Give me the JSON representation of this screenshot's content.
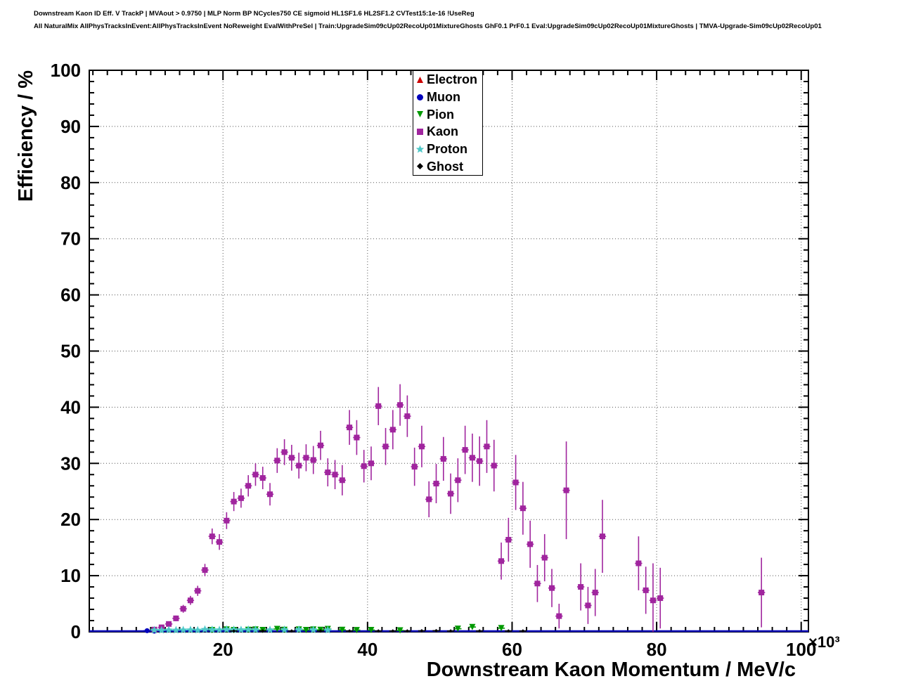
{
  "header": {
    "title_line1": "Downstream Kaon ID Eff. V TrackP | MVAout > 0.9750 | MLP Norm BP NCycles750 CE sigmoid HL1SF1.6 HL2SF1.2 CVTest15:1e-16 !UseReg",
    "title_line2": "All NaturalMix AllPhysTracksInEvent:AllPhysTracksInEvent NoReweight EvalWithPreSel | Train:UpgradeSim09cUp02RecoUp01MixtureGhosts GhF0.1 PrF0.1 Eval:UpgradeSim09cUp02RecoUp01MixtureGhosts | TMVA-Upgrade-Sim09cUp02RecoUp01",
    "x_power_label": "×10³"
  },
  "chart_data": {
    "type": "scatter",
    "title": "Downstream Kaon ID efficiency vs momentum",
    "xlabel": "Downstream Kaon Momentum / MeV/c",
    "ylabel": "Efficiency / %",
    "x_unit_multiplier": "×10³",
    "xlim": [
      1.5,
      101
    ],
    "ylim": [
      0,
      100
    ],
    "x_ticks": [
      20,
      40,
      60,
      80,
      100
    ],
    "y_ticks": [
      0,
      10,
      20,
      30,
      40,
      50,
      60,
      70,
      80,
      90,
      100
    ],
    "x_minor_step": 2,
    "y_minor_step": 2,
    "grid": "dotted",
    "legend_position": "top-center",
    "series": [
      {
        "name": "Electron",
        "marker": "triangle-up",
        "color": "#cc0000",
        "size": 9,
        "points": []
      },
      {
        "name": "Muon",
        "marker": "circle",
        "color": "#0000bb",
        "size": 7,
        "line_y": 0.12,
        "points": [
          [
            9.5,
            0.2,
            0.15
          ],
          [
            10.5,
            0.12,
            0.1
          ]
        ]
      },
      {
        "name": "Pion",
        "marker": "triangle-down",
        "color": "#009900",
        "size": 9,
        "points": [
          [
            18.5,
            0.3,
            0.1
          ],
          [
            20.5,
            0.4,
            0.1
          ],
          [
            21.5,
            0.3,
            0.1
          ],
          [
            23.5,
            0.35,
            0.1
          ],
          [
            24.5,
            0.4,
            0.1
          ],
          [
            25.5,
            0.32,
            0.1
          ],
          [
            27.5,
            0.5,
            0.12
          ],
          [
            28.5,
            0.35,
            0.1
          ],
          [
            30.5,
            0.4,
            0.1
          ],
          [
            31.5,
            0.32,
            0.1
          ],
          [
            32.5,
            0.4,
            0.12
          ],
          [
            33.5,
            0.35,
            0.1
          ],
          [
            34.5,
            0.5,
            0.12
          ],
          [
            36.5,
            0.35,
            0.1
          ],
          [
            38.5,
            0.3,
            0.1
          ],
          [
            40.5,
            0.32,
            0.1
          ],
          [
            44.5,
            0.25,
            0.1
          ],
          [
            52.5,
            0.55,
            0.2
          ],
          [
            54.5,
            0.85,
            0.3
          ],
          [
            58.5,
            0.65,
            0.3
          ]
        ]
      },
      {
        "name": "Kaon",
        "marker": "square",
        "color": "#a0259e",
        "size": 8,
        "points": [
          [
            10.5,
            0.4,
            0.3
          ],
          [
            11.5,
            0.8,
            0.35
          ],
          [
            12.5,
            1.4,
            0.4
          ],
          [
            13.5,
            2.4,
            0.5
          ],
          [
            14.5,
            4.1,
            0.7
          ],
          [
            15.5,
            5.6,
            0.8
          ],
          [
            16.5,
            7.3,
            0.9
          ],
          [
            17.5,
            11.0,
            1.1
          ],
          [
            18.5,
            17.0,
            1.4
          ],
          [
            19.5,
            16.0,
            1.4
          ],
          [
            20.5,
            19.8,
            1.5
          ],
          [
            21.5,
            23.2,
            1.7
          ],
          [
            22.5,
            23.8,
            1.7
          ],
          [
            23.5,
            26.0,
            1.9
          ],
          [
            24.5,
            28.0,
            2.0
          ],
          [
            25.5,
            27.4,
            2.0
          ],
          [
            26.5,
            24.5,
            2.0
          ],
          [
            27.5,
            30.5,
            2.2
          ],
          [
            28.5,
            32.0,
            2.3
          ],
          [
            29.5,
            31.0,
            2.3
          ],
          [
            30.5,
            29.6,
            2.3
          ],
          [
            31.5,
            31.0,
            2.4
          ],
          [
            32.5,
            30.6,
            2.5
          ],
          [
            33.5,
            33.2,
            2.6
          ],
          [
            34.5,
            28.4,
            2.5
          ],
          [
            35.5,
            28.0,
            2.6
          ],
          [
            36.5,
            27.0,
            2.7
          ],
          [
            37.5,
            36.4,
            3.1
          ],
          [
            38.5,
            34.6,
            3.1
          ],
          [
            39.5,
            29.5,
            2.9
          ],
          [
            40.5,
            30.0,
            3.0
          ],
          [
            41.5,
            40.2,
            3.4
          ],
          [
            42.5,
            33.0,
            3.3
          ],
          [
            43.5,
            36.0,
            3.5
          ],
          [
            44.5,
            40.4,
            3.7
          ],
          [
            45.5,
            38.4,
            3.7
          ],
          [
            46.5,
            29.4,
            3.4
          ],
          [
            47.5,
            33.0,
            3.7
          ],
          [
            48.5,
            23.6,
            3.2
          ],
          [
            49.5,
            26.4,
            3.5
          ],
          [
            50.5,
            30.8,
            3.9
          ],
          [
            51.5,
            24.6,
            3.6
          ],
          [
            52.5,
            27.0,
            3.9
          ],
          [
            53.5,
            32.4,
            4.3
          ],
          [
            54.5,
            31.0,
            4.3
          ],
          [
            55.5,
            30.4,
            4.4
          ],
          [
            56.5,
            33.0,
            4.7
          ],
          [
            57.5,
            29.6,
            4.6
          ],
          [
            58.5,
            12.6,
            3.3
          ],
          [
            59.5,
            16.4,
            3.9
          ],
          [
            60.5,
            26.6,
            4.9
          ],
          [
            61.5,
            22.0,
            4.7
          ],
          [
            62.5,
            15.6,
            4.2
          ],
          [
            63.5,
            8.6,
            3.3
          ],
          [
            64.5,
            13.2,
            4.2
          ],
          [
            65.5,
            7.8,
            3.4
          ],
          [
            66.5,
            2.8,
            2.2
          ],
          [
            67.5,
            25.2,
            8.7
          ],
          [
            69.5,
            8.0,
            4.2
          ],
          [
            70.5,
            4.7,
            3.3
          ],
          [
            71.5,
            7.0,
            4.2
          ],
          [
            72.5,
            17.0,
            6.5
          ],
          [
            77.5,
            12.2,
            4.8
          ],
          [
            78.5,
            7.4,
            4.2
          ],
          [
            79.5,
            5.6,
            6.6
          ],
          [
            80.5,
            6.0,
            5.4
          ],
          [
            94.5,
            7.0,
            6.2
          ]
        ]
      },
      {
        "name": "Proton",
        "marker": "star",
        "color": "#4dc8c8",
        "size": 11,
        "points": [
          [
            10.5,
            0.3,
            0.1
          ],
          [
            11.5,
            0.28,
            0.1
          ],
          [
            12.5,
            0.32,
            0.1
          ],
          [
            13.5,
            0.3,
            0.1
          ],
          [
            14.5,
            0.33,
            0.1
          ],
          [
            15.5,
            0.35,
            0.1
          ],
          [
            16.5,
            0.3,
            0.1
          ],
          [
            17.5,
            0.42,
            0.1
          ],
          [
            18.5,
            0.38,
            0.1
          ],
          [
            19.5,
            0.35,
            0.1
          ],
          [
            20.5,
            0.42,
            0.1
          ],
          [
            21.5,
            0.38,
            0.1
          ],
          [
            22.5,
            0.36,
            0.1
          ],
          [
            23.5,
            0.4,
            0.1
          ],
          [
            24.5,
            0.38,
            0.1
          ],
          [
            26.5,
            0.35,
            0.1
          ],
          [
            28.5,
            0.38,
            0.1
          ],
          [
            30.5,
            0.4,
            0.1
          ],
          [
            32.5,
            0.36,
            0.1
          ],
          [
            34.5,
            0.32,
            0.1
          ]
        ]
      },
      {
        "name": "Ghost",
        "marker": "diamond",
        "color": "#000000",
        "size": 5,
        "points": [
          [
            21.5,
            0.15,
            0.05
          ],
          [
            25.5,
            0.15,
            0.05
          ],
          [
            29.5,
            0.15,
            0.05
          ],
          [
            33.5,
            0.15,
            0.05
          ],
          [
            37.5,
            0.15,
            0.05
          ],
          [
            41.5,
            0.15,
            0.05
          ],
          [
            43.5,
            0.15,
            0.05
          ],
          [
            45.5,
            0.15,
            0.05
          ],
          [
            47.5,
            0.18,
            0.06
          ],
          [
            49.5,
            0.2,
            0.08
          ],
          [
            51.5,
            0.15,
            0.06
          ],
          [
            55.5,
            0.15,
            0.06
          ],
          [
            59.5,
            0.15,
            0.08
          ],
          [
            61.5,
            0.15,
            0.08
          ]
        ]
      }
    ]
  }
}
